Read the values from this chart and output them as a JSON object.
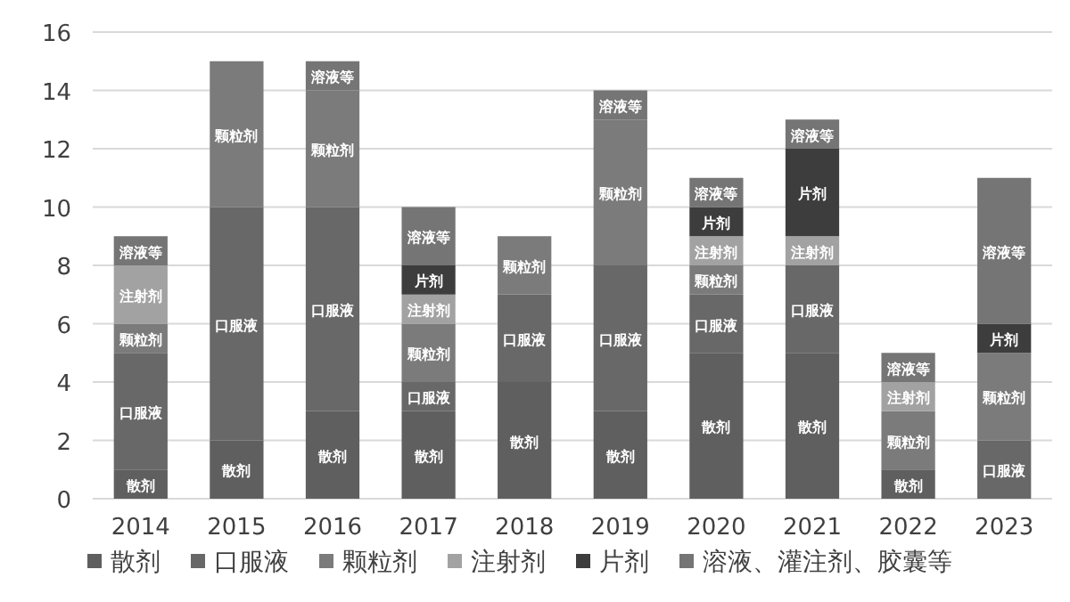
{
  "chart_data": {
    "type": "bar",
    "stacked": true,
    "categories": [
      "2014",
      "2015",
      "2016",
      "2017",
      "2018",
      "2019",
      "2020",
      "2021",
      "2022",
      "2023"
    ],
    "series": [
      {
        "name": "散剂",
        "color": "#5f5f5f",
        "values": [
          1,
          2,
          3,
          3,
          4,
          3,
          5,
          5,
          1,
          null
        ],
        "value_labels": [
          "散剂",
          "散剂",
          "散剂",
          "散剂",
          "散剂",
          "散剂",
          "散剂",
          "散剂",
          "散剂",
          null
        ]
      },
      {
        "name": "口服液",
        "color": "#686868",
        "values": [
          4,
          8,
          7,
          1,
          3,
          5,
          2,
          3,
          null,
          2
        ],
        "value_labels": [
          "口服液",
          "口服液",
          "口服液",
          "口服液",
          "口服液",
          "口服液",
          "口服液",
          "口服液",
          null,
          "口服液"
        ]
      },
      {
        "name": "颗粒剂",
        "color": "#7b7b7b",
        "values": [
          1,
          5,
          4,
          2,
          2,
          5,
          1,
          null,
          2,
          3
        ],
        "value_labels": [
          "颗粒剂",
          "颗粒剂",
          "颗粒剂",
          "颗粒剂",
          "颗粒剂",
          "颗粒剂",
          "颗粒剂",
          null,
          "颗粒剂",
          "颗粒剂"
        ]
      },
      {
        "name": "注射剂",
        "color": "#a2a2a2",
        "values": [
          2,
          null,
          null,
          1,
          null,
          null,
          1,
          1,
          1,
          null
        ],
        "value_labels": [
          "注射剂",
          null,
          null,
          "注射剂",
          null,
          null,
          "注射剂",
          "注射剂",
          "注射剂",
          null
        ]
      },
      {
        "name": "片剂",
        "color": "#3d3d3d",
        "values": [
          null,
          null,
          null,
          1,
          null,
          null,
          1,
          3,
          null,
          1
        ],
        "value_labels": [
          null,
          null,
          null,
          "片剂",
          null,
          null,
          "片剂",
          "片剂",
          null,
          "片剂"
        ]
      },
      {
        "name": "溶液、灌注剂、胶囊等",
        "color": "#757575",
        "values": [
          1,
          null,
          1,
          2,
          null,
          1,
          1,
          1,
          1,
          5
        ],
        "value_labels": [
          "溶液等",
          null,
          "溶液等",
          "溶液等",
          null,
          "溶液等",
          "溶液等",
          "溶液等",
          "溶液等",
          "溶液等"
        ]
      }
    ],
    "ylim": [
      0,
      16
    ],
    "yticks": [
      0,
      2,
      4,
      6,
      8,
      10,
      12,
      14,
      16
    ],
    "grid": "y",
    "legend": "bottom"
  }
}
